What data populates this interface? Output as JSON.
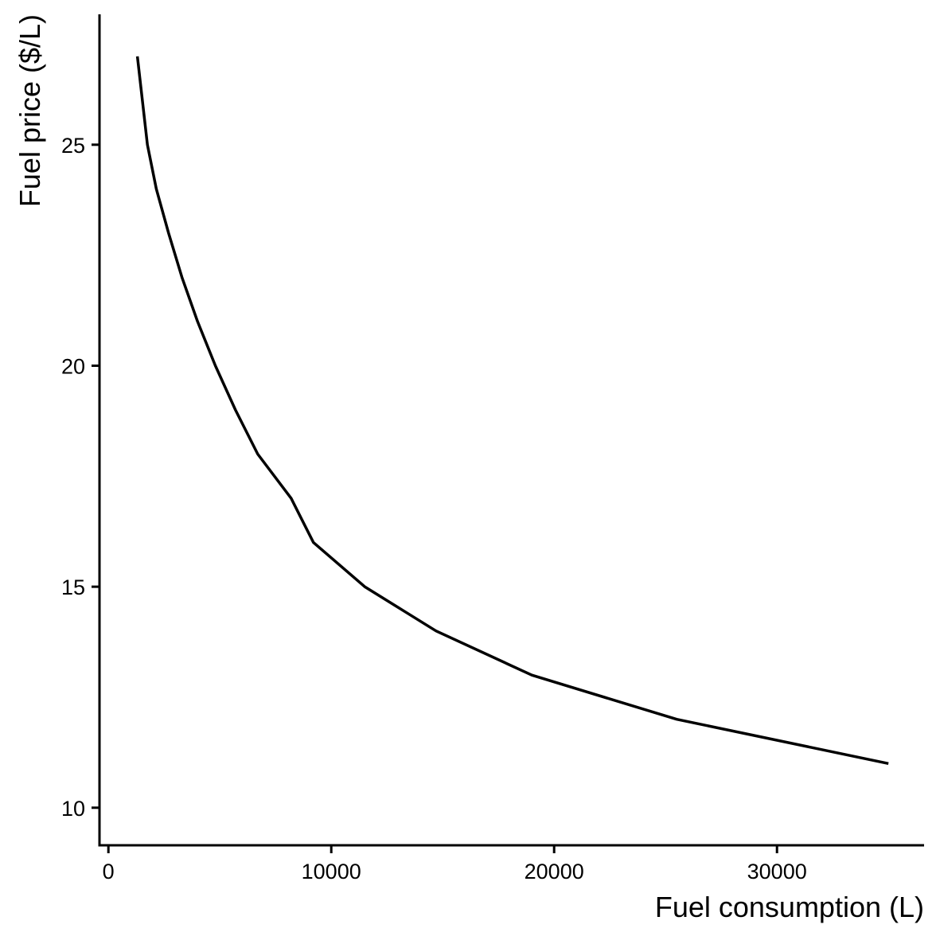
{
  "chart_data": {
    "type": "line",
    "title": "",
    "xlabel": "Fuel consumption (L)",
    "ylabel": "Fuel price ($/L)",
    "xlim": [
      -400,
      36600
    ],
    "ylim": [
      9.15,
      27.95
    ],
    "x_ticks": [
      0,
      10000,
      20000,
      30000
    ],
    "x_tick_labels": [
      "0",
      "10000",
      "20000",
      "30000"
    ],
    "y_ticks": [
      10,
      15,
      20,
      25
    ],
    "y_tick_labels": [
      "10",
      "15",
      "20",
      "25"
    ],
    "grid": false,
    "legend": "none",
    "colors": {
      "line": "#000000",
      "axis": "#000000",
      "background": "#ffffff"
    },
    "series": [
      {
        "x": [
          1300,
          1750,
          2150,
          2700,
          3300,
          4000,
          4800,
          5700,
          6700,
          8200,
          9200,
          11500,
          14700,
          19000,
          25500,
          35000
        ],
        "y": [
          27,
          25,
          24,
          23,
          22,
          21,
          20,
          19,
          18,
          17,
          16,
          15,
          14,
          13,
          12,
          11
        ]
      }
    ]
  }
}
